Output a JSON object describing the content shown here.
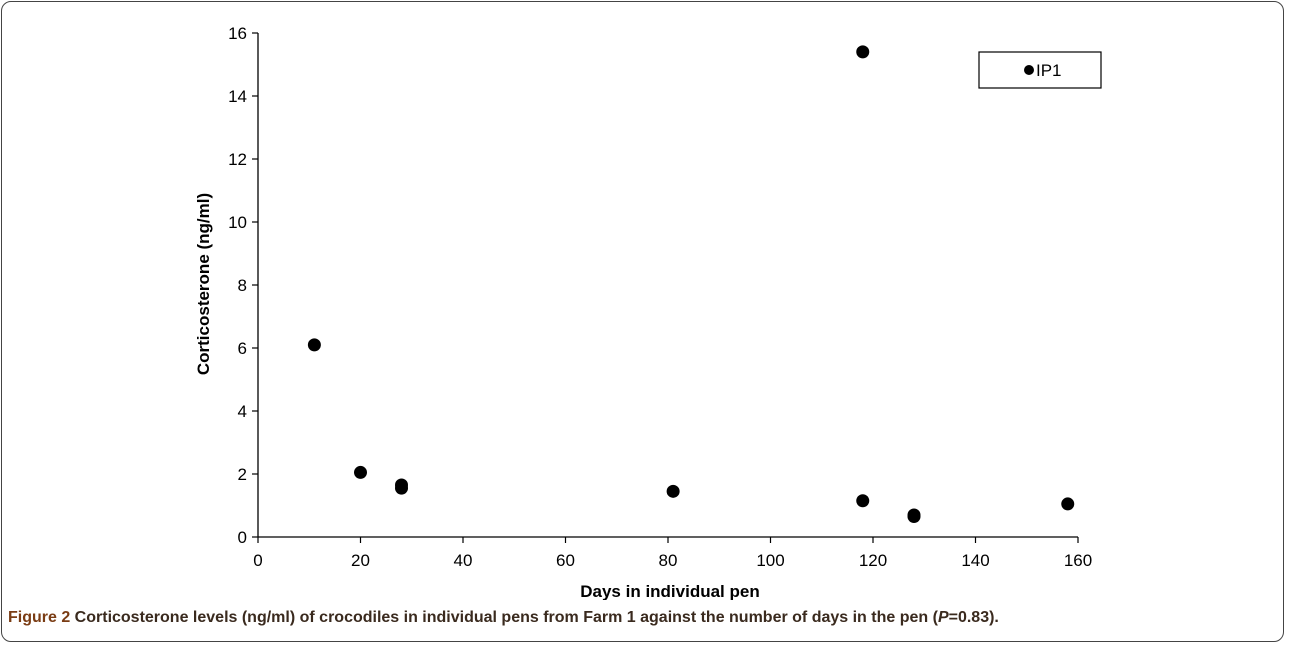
{
  "chart_data": {
    "type": "scatter",
    "xlabel": "Days in individual pen",
    "ylabel": "Corticosterone (ng/ml)",
    "xlim": [
      0,
      160
    ],
    "ylim": [
      0,
      16
    ],
    "x_ticks": [
      "0",
      "20",
      "40",
      "60",
      "80",
      "100",
      "120",
      "140",
      "160"
    ],
    "y_ticks": [
      "0",
      "2",
      "4",
      "6",
      "8",
      "10",
      "12",
      "14",
      "16"
    ],
    "grid": false,
    "legend_position": "top-right",
    "series": [
      {
        "name": "IP1",
        "color": "#000000",
        "marker": "circle",
        "points": [
          {
            "x": 11,
            "y": 6.1
          },
          {
            "x": 20,
            "y": 2.05
          },
          {
            "x": 28,
            "y": 1.65
          },
          {
            "x": 28,
            "y": 1.55
          },
          {
            "x": 81,
            "y": 1.45
          },
          {
            "x": 118,
            "y": 15.4
          },
          {
            "x": 118,
            "y": 1.15
          },
          {
            "x": 128,
            "y": 0.7
          },
          {
            "x": 128,
            "y": 0.65
          },
          {
            "x": 158,
            "y": 1.05
          }
        ]
      }
    ]
  },
  "caption": {
    "label": "Figure 2",
    "text_before": " Corticosterone levels (ng/ml) of crocodiles in individual pens from Farm 1 against the number of days in the pen (",
    "p_symbol": "P",
    "text_after": "=0.83)."
  }
}
